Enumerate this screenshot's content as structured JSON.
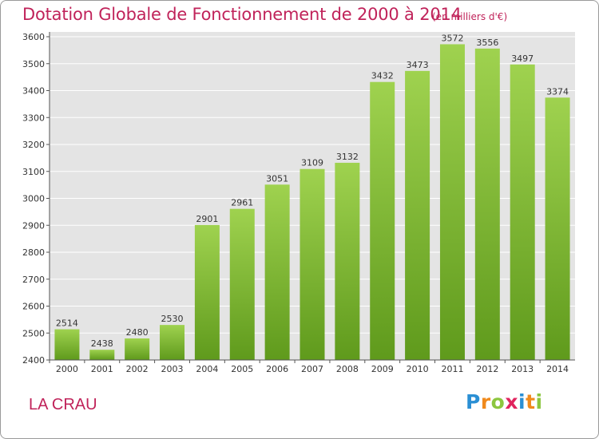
{
  "header": {
    "title": "Dotation Globale de Fonctionnement de 2000 à 2014",
    "unit": "(en milliers d'€)"
  },
  "footer": {
    "commune": "LA CRAU",
    "logo_letters": [
      {
        "ch": "P",
        "color": "#2a8fd4"
      },
      {
        "ch": "r",
        "color": "#f08a1c"
      },
      {
        "ch": "o",
        "color": "#8cc63f"
      },
      {
        "ch": "x",
        "color": "#e0245e"
      },
      {
        "ch": "i",
        "color": "#2a8fd4"
      },
      {
        "ch": "t",
        "color": "#f08a1c"
      },
      {
        "ch": "i",
        "color": "#8cc63f"
      }
    ]
  },
  "chart_data": {
    "type": "bar",
    "title": "Dotation Globale de Fonctionnement de 2000 à 2014",
    "subtitle": "(en milliers d'€)",
    "categories": [
      "2000",
      "2001",
      "2002",
      "2003",
      "2004",
      "2005",
      "2006",
      "2007",
      "2008",
      "2009",
      "2010",
      "2011",
      "2012",
      "2013",
      "2014"
    ],
    "values": [
      2514,
      2438,
      2480,
      2530,
      2901,
      2961,
      3051,
      3109,
      3132,
      3432,
      3473,
      3572,
      3556,
      3497,
      3374
    ],
    "ylim": [
      2400,
      3600
    ],
    "yticks": [
      2400,
      2500,
      2600,
      2700,
      2800,
      2900,
      3000,
      3100,
      3200,
      3300,
      3400,
      3500,
      3600
    ],
    "grid": true,
    "bar_color_top": "#9fd24f",
    "bar_color_bottom": "#5f9a1c",
    "background": "#e4e4e4",
    "grid_color": "#ffffff"
  }
}
